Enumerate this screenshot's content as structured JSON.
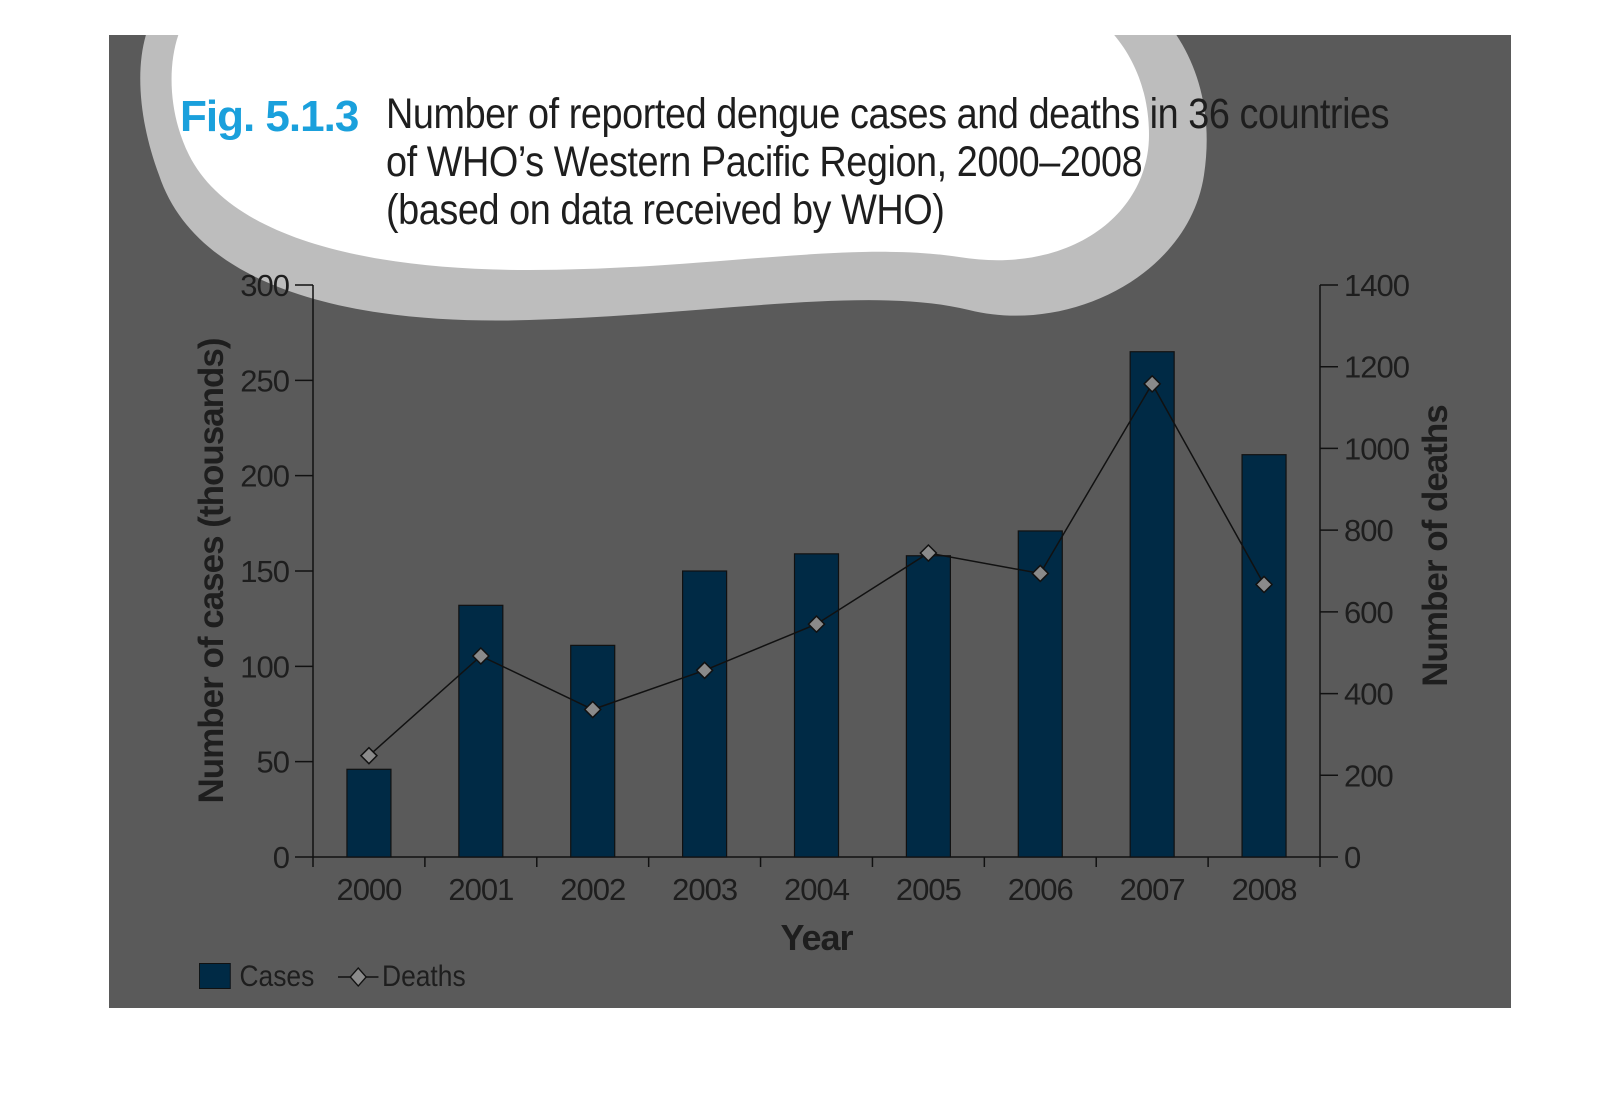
{
  "figure": {
    "label": "Fig. 5.1.3",
    "title_lines": [
      "Number of reported dengue cases and deaths in 36 countries",
      "of WHO’s Western Pacific Region, 2000–2008",
      "(based on data received by WHO)"
    ]
  },
  "colors": {
    "panel_bg": "#5a5a5a",
    "bar_fill": "#002a45",
    "line": "#111111",
    "marker_fill": "#8a8a8a",
    "fig_label": "#1aa0dc",
    "cloud_fill": "#ffffff",
    "cloud_halo": "#bdbdbd"
  },
  "chart_data": {
    "type": "bar",
    "xlabel": "Year",
    "ylabel": "Number of cases (thousands)",
    "y2label": "Number of deaths",
    "categories": [
      "2000",
      "2001",
      "2002",
      "2003",
      "2004",
      "2005",
      "2006",
      "2007",
      "2008"
    ],
    "ylim": [
      0,
      300
    ],
    "y_ticks": [
      "0",
      "50",
      "100",
      "150",
      "200",
      "250",
      "300"
    ],
    "y2lim": [
      0,
      1400
    ],
    "y2_ticks": [
      "0",
      "200",
      "400",
      "600",
      "800",
      "1000",
      "1200",
      "1400"
    ],
    "series": [
      {
        "name": "Cases",
        "type": "bar",
        "axis": "left",
        "values": [
          46,
          132,
          111,
          150,
          159,
          158,
          171,
          265,
          211
        ]
      },
      {
        "name": "Deaths",
        "type": "line",
        "axis": "right",
        "marker": "diamond",
        "values": [
          248,
          492,
          361,
          457,
          570,
          744,
          694,
          1158,
          667
        ]
      }
    ],
    "legend": [
      "Cases",
      "Deaths"
    ],
    "legend_position": "bottom-left",
    "grid": false
  }
}
